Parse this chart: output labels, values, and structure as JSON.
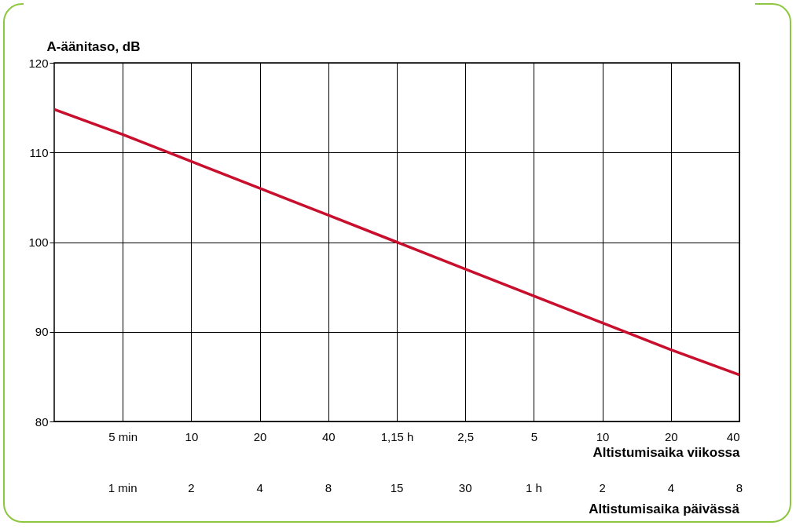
{
  "chart_data": {
    "type": "line",
    "ylabel": "A-äänitaso, dB",
    "xlabel": "Altistumisaika viikossa",
    "x2label": "Altistumisaika päivässä",
    "categories": [
      null,
      "5 min",
      "10",
      "20",
      "40",
      "1,15 h",
      "2,5",
      "5",
      "10",
      "20",
      "40"
    ],
    "series": [
      {
        "color": "#c8102e",
        "values": [
          114.8,
          112,
          109,
          106,
          103,
          100,
          97,
          94,
          91,
          88,
          85.2
        ]
      }
    ],
    "annotations": [
      "1 min",
      "2",
      "4",
      "8",
      "15",
      "30",
      "1 h",
      "2",
      "4",
      "8"
    ],
    "ylim": [
      80,
      120
    ],
    "yticks": [
      80,
      90,
      100,
      110,
      120
    ],
    "grid": true,
    "marker": "none",
    "line_style": "solid"
  }
}
